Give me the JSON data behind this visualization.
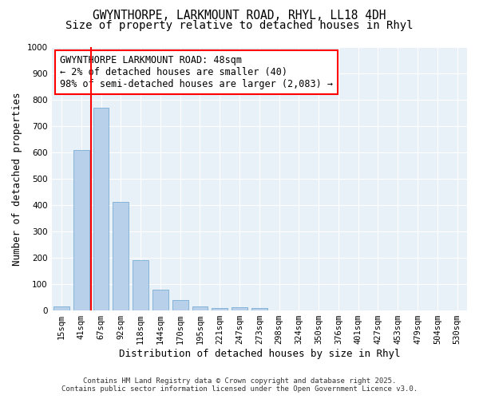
{
  "title_line1": "GWYNTHORPE, LARKMOUNT ROAD, RHYL, LL18 4DH",
  "title_line2": "Size of property relative to detached houses in Rhyl",
  "xlabel": "Distribution of detached houses by size in Rhyl",
  "ylabel": "Number of detached properties",
  "categories": [
    "15sqm",
    "41sqm",
    "67sqm",
    "92sqm",
    "118sqm",
    "144sqm",
    "170sqm",
    "195sqm",
    "221sqm",
    "247sqm",
    "273sqm",
    "298sqm",
    "324sqm",
    "350sqm",
    "376sqm",
    "401sqm",
    "427sqm",
    "453sqm",
    "479sqm",
    "504sqm",
    "530sqm"
  ],
  "values": [
    15,
    608,
    770,
    412,
    192,
    78,
    40,
    15,
    10,
    12,
    10,
    0,
    0,
    0,
    0,
    0,
    0,
    0,
    0,
    0,
    0
  ],
  "bar_color": "#b8d0ea",
  "bar_edge_color": "#7aadd4",
  "annotation_box_text": "GWYNTHORPE LARKMOUNT ROAD: 48sqm\n← 2% of detached houses are smaller (40)\n98% of semi-detached houses are larger (2,083) →",
  "red_line_x": 1.5,
  "ylim": [
    0,
    1000
  ],
  "yticks": [
    0,
    100,
    200,
    300,
    400,
    500,
    600,
    700,
    800,
    900,
    1000
  ],
  "background_color": "#ffffff",
  "plot_bg_color": "#e8f0f8",
  "grid_color": "#ffffff",
  "footer_line1": "Contains HM Land Registry data © Crown copyright and database right 2025.",
  "footer_line2": "Contains public sector information licensed under the Open Government Licence v3.0.",
  "title_fontsize": 10.5,
  "axis_label_fontsize": 9,
  "tick_fontsize": 7.5,
  "annotation_fontsize": 8.5
}
